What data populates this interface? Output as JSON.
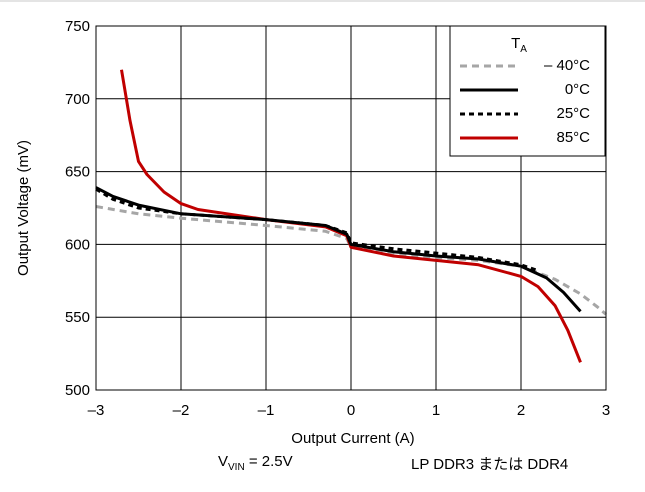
{
  "chart_data": {
    "type": "line",
    "xlabel": "Output Current (A)",
    "ylabel": "Output Voltage (mV)",
    "xlim": [
      -3,
      3
    ],
    "ylim": [
      500,
      750
    ],
    "xticks": [
      -3,
      -2,
      -1,
      0,
      1,
      2,
      3
    ],
    "xtick_labels": [
      "–3",
      "–2",
      "–1",
      "0",
      "1",
      "2",
      "3"
    ],
    "yticks": [
      500,
      550,
      600,
      650,
      700,
      750
    ],
    "ytick_labels": [
      "500",
      "550",
      "600",
      "650",
      "700",
      "750"
    ],
    "grid": true,
    "legend": {
      "title_main": "T",
      "title_sub": "A",
      "placement": "top-right"
    },
    "series": [
      {
        "name": "– 40°C",
        "color": "#a6a6a6",
        "dash": "dashed",
        "points": [
          [
            -3.0,
            626
          ],
          [
            -2.5,
            621
          ],
          [
            -2.0,
            618
          ],
          [
            -1.0,
            613
          ],
          [
            -0.3,
            609
          ],
          [
            -0.05,
            604
          ],
          [
            0.0,
            598
          ],
          [
            0.5,
            594
          ],
          [
            1.0,
            591
          ],
          [
            1.5,
            589
          ],
          [
            2.0,
            585
          ],
          [
            2.4,
            576
          ],
          [
            2.7,
            566
          ],
          [
            2.9,
            557
          ],
          [
            3.0,
            552
          ]
        ]
      },
      {
        "name": "0°C",
        "color": "#000000",
        "dash": "solid",
        "points": [
          [
            -3.0,
            639
          ],
          [
            -2.8,
            633
          ],
          [
            -2.5,
            627
          ],
          [
            -2.0,
            621
          ],
          [
            -1.0,
            617
          ],
          [
            -0.3,
            613
          ],
          [
            -0.05,
            607
          ],
          [
            0.0,
            600
          ],
          [
            0.5,
            595
          ],
          [
            1.0,
            592
          ],
          [
            1.5,
            590
          ],
          [
            2.0,
            585
          ],
          [
            2.3,
            577
          ],
          [
            2.5,
            567
          ],
          [
            2.7,
            554
          ]
        ]
      },
      {
        "name": "25°C",
        "color": "#000000",
        "dash": "dotted",
        "points": [
          [
            -3.0,
            638
          ],
          [
            -2.8,
            631
          ],
          [
            -2.5,
            625
          ],
          [
            -2.0,
            621
          ],
          [
            -1.0,
            617
          ],
          [
            -0.3,
            613
          ],
          [
            -0.05,
            608
          ],
          [
            0.0,
            601
          ],
          [
            0.5,
            597
          ],
          [
            1.0,
            594
          ],
          [
            1.5,
            591
          ],
          [
            2.0,
            586
          ],
          [
            2.2,
            582
          ]
        ]
      },
      {
        "name": "85°C",
        "color": "#c00000",
        "dash": "solid",
        "points": [
          [
            -2.7,
            720
          ],
          [
            -2.6,
            685
          ],
          [
            -2.5,
            657
          ],
          [
            -2.4,
            648
          ],
          [
            -2.2,
            636
          ],
          [
            -2.0,
            628
          ],
          [
            -1.8,
            624
          ],
          [
            -1.0,
            617
          ],
          [
            -0.3,
            612
          ],
          [
            -0.05,
            606
          ],
          [
            0.0,
            598
          ],
          [
            0.5,
            592
          ],
          [
            1.0,
            589
          ],
          [
            1.5,
            586
          ],
          [
            2.0,
            578
          ],
          [
            2.2,
            571
          ],
          [
            2.4,
            558
          ],
          [
            2.55,
            541
          ],
          [
            2.7,
            519
          ]
        ]
      }
    ]
  },
  "footer": {
    "vin_prefix": "V",
    "vin_sub": "VIN",
    "vin_suffix": " = 2.5V",
    "memory_label": "LP DDR3 または DDR4"
  }
}
